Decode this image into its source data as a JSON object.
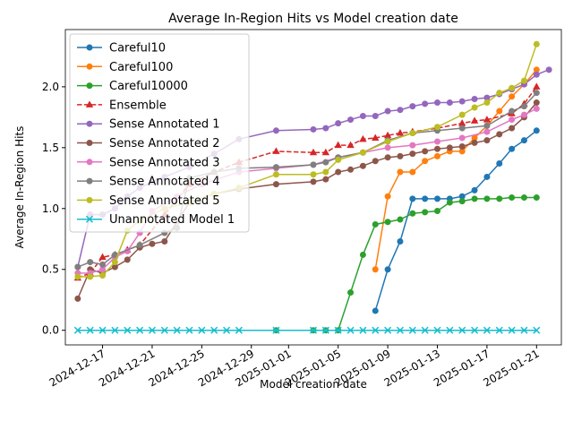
{
  "chart_data": {
    "type": "line",
    "title": "Average In-Region Hits vs Model creation date",
    "x_label": "Model creation date",
    "y_label": "Average In-Region Hits",
    "xlim": [
      "2024-12-14",
      "2025-01-23"
    ],
    "xticks": [
      "2024-12-17",
      "2024-12-21",
      "2024-12-25",
      "2024-12-29",
      "2025-01-01",
      "2025-01-05",
      "2025-01-09",
      "2025-01-13",
      "2025-01-17",
      "2025-01-21"
    ],
    "ylim": [
      -0.12,
      2.47
    ],
    "yticks": [
      {
        "value": 0,
        "label": "0.0"
      },
      0.5,
      {
        "value": 1,
        "label": "1.0"
      },
      1.5,
      {
        "value": 2,
        "label": "2.0"
      }
    ],
    "legend": "upper left",
    "series": [
      {
        "name": "Careful10",
        "color": "#1f77b4",
        "marker": "circle",
        "dash": false,
        "x": [
          "2025-01-08",
          "2025-01-09",
          "2025-01-10",
          "2025-01-11",
          "2025-01-12",
          "2025-01-13",
          "2025-01-14",
          "2025-01-15",
          "2025-01-16",
          "2025-01-17",
          "2025-01-18",
          "2025-01-19",
          "2025-01-20",
          "2025-01-21"
        ],
        "values": [
          0.16,
          0.5,
          0.73,
          1.08,
          1.08,
          1.08,
          1.08,
          1.1,
          1.15,
          1.26,
          1.37,
          1.49,
          1.56,
          1.64
        ]
      },
      {
        "name": "Careful100",
        "color": "#ff7f0e",
        "marker": "circle",
        "dash": false,
        "x": [
          "2025-01-08",
          "2025-01-09",
          "2025-01-10",
          "2025-01-11",
          "2025-01-12",
          "2025-01-13",
          "2025-01-14",
          "2025-01-15",
          "2025-01-16",
          "2025-01-17",
          "2025-01-18",
          "2025-01-19",
          "2025-01-20",
          "2025-01-21"
        ],
        "values": [
          0.5,
          1.1,
          1.3,
          1.3,
          1.39,
          1.43,
          1.47,
          1.47,
          1.58,
          1.68,
          1.8,
          1.92,
          2.02,
          2.14
        ]
      },
      {
        "name": "Careful10000",
        "color": "#2ca02c",
        "marker": "circle",
        "dash": false,
        "x": [
          "2024-12-31",
          "2025-01-03",
          "2025-01-04",
          "2025-01-05",
          "2025-01-06",
          "2025-01-07",
          "2025-01-08",
          "2025-01-09",
          "2025-01-10",
          "2025-01-11",
          "2025-01-12",
          "2025-01-13",
          "2025-01-14",
          "2025-01-15",
          "2025-01-16",
          "2025-01-17",
          "2025-01-18",
          "2025-01-19",
          "2025-01-20",
          "2025-01-21"
        ],
        "values": [
          0,
          0,
          0,
          0,
          0.31,
          0.62,
          0.87,
          0.89,
          0.91,
          0.96,
          0.97,
          0.98,
          1.05,
          1.06,
          1.08,
          1.08,
          1.08,
          1.09,
          1.09,
          1.09
        ]
      },
      {
        "name": "Ensemble",
        "color": "#d62728",
        "marker": "triangle",
        "dash": true,
        "x": [
          "2024-12-15",
          "2024-12-16",
          "2024-12-17",
          "2024-12-18",
          "2024-12-19",
          "2024-12-20",
          "2024-12-22",
          "2024-12-24",
          "2024-12-26",
          "2024-12-28",
          "2024-12-31",
          "2025-01-03",
          "2025-01-04",
          "2025-01-05",
          "2025-01-06",
          "2025-01-07",
          "2025-01-08",
          "2025-01-09",
          "2025-01-10",
          "2025-01-11",
          "2025-01-13",
          "2025-01-15",
          "2025-01-16",
          "2025-01-17",
          "2025-01-19",
          "2025-01-20",
          "2025-01-21"
        ],
        "values": [
          0.43,
          0.47,
          0.6,
          0.62,
          0.66,
          0.7,
          0.95,
          1.2,
          1.3,
          1.38,
          1.47,
          1.46,
          1.46,
          1.52,
          1.52,
          1.57,
          1.58,
          1.6,
          1.62,
          1.63,
          1.66,
          1.7,
          1.72,
          1.73,
          1.78,
          1.86,
          2.0
        ]
      },
      {
        "name": "Sense Annotated 1",
        "color": "#9467bd",
        "marker": "circle",
        "dash": false,
        "x": [
          "2024-12-15",
          "2024-12-16",
          "2024-12-17",
          "2024-12-18",
          "2024-12-19",
          "2024-12-20",
          "2024-12-21",
          "2024-12-22",
          "2024-12-24",
          "2024-12-26",
          "2024-12-28",
          "2024-12-31",
          "2025-01-03",
          "2025-01-04",
          "2025-01-05",
          "2025-01-06",
          "2025-01-07",
          "2025-01-08",
          "2025-01-09",
          "2025-01-10",
          "2025-01-11",
          "2025-01-12",
          "2025-01-13",
          "2025-01-14",
          "2025-01-15",
          "2025-01-16",
          "2025-01-17",
          "2025-01-18",
          "2025-01-19",
          "2025-01-20",
          "2025-01-21",
          "2025-01-22"
        ],
        "values": [
          0.52,
          0.95,
          0.95,
          1.0,
          1.1,
          1.17,
          1.22,
          1.26,
          1.34,
          1.45,
          1.57,
          1.64,
          1.65,
          1.66,
          1.7,
          1.73,
          1.76,
          1.76,
          1.8,
          1.81,
          1.84,
          1.86,
          1.87,
          1.87,
          1.88,
          1.9,
          1.91,
          1.94,
          1.98,
          2.02,
          2.1,
          2.14
        ]
      },
      {
        "name": "Sense Annotated 2",
        "color": "#8c564b",
        "marker": "circle",
        "dash": false,
        "x": [
          "2024-12-15",
          "2024-12-16",
          "2024-12-17",
          "2024-12-18",
          "2024-12-19",
          "2024-12-20",
          "2024-12-21",
          "2024-12-22",
          "2024-12-24",
          "2024-12-26",
          "2024-12-28",
          "2024-12-31",
          "2025-01-03",
          "2025-01-04",
          "2025-01-05",
          "2025-01-06",
          "2025-01-07",
          "2025-01-08",
          "2025-01-09",
          "2025-01-10",
          "2025-01-11",
          "2025-01-12",
          "2025-01-13",
          "2025-01-14",
          "2025-01-15",
          "2025-01-16",
          "2025-01-17",
          "2025-01-18",
          "2025-01-19",
          "2025-01-20",
          "2025-01-21"
        ],
        "values": [
          0.26,
          0.5,
          0.47,
          0.52,
          0.58,
          0.68,
          0.71,
          0.73,
          1.05,
          1.12,
          1.16,
          1.2,
          1.22,
          1.24,
          1.3,
          1.32,
          1.35,
          1.39,
          1.42,
          1.43,
          1.45,
          1.47,
          1.49,
          1.5,
          1.51,
          1.54,
          1.56,
          1.61,
          1.66,
          1.75,
          1.87
        ]
      },
      {
        "name": "Sense Annotated 3",
        "color": "#e377c2",
        "marker": "circle",
        "dash": false,
        "x": [
          "2024-12-15",
          "2024-12-16",
          "2024-12-17",
          "2024-12-18",
          "2024-12-19",
          "2024-12-20",
          "2024-12-21",
          "2024-12-23",
          "2024-12-25",
          "2024-12-28",
          "2024-12-31",
          "2025-01-03",
          "2025-01-05",
          "2025-01-07",
          "2025-01-09",
          "2025-01-11",
          "2025-01-13",
          "2025-01-15",
          "2025-01-17",
          "2025-01-19",
          "2025-01-20",
          "2025-01-21"
        ],
        "values": [
          0.47,
          0.47,
          0.5,
          0.6,
          0.65,
          0.8,
          0.98,
          1.1,
          1.2,
          1.3,
          1.33,
          1.36,
          1.42,
          1.46,
          1.5,
          1.52,
          1.55,
          1.58,
          1.63,
          1.73,
          1.77,
          1.82
        ]
      },
      {
        "name": "Sense Annotated 4",
        "color": "#7f7f7f",
        "marker": "circle",
        "dash": false,
        "x": [
          "2024-12-15",
          "2024-12-16",
          "2024-12-17",
          "2024-12-18",
          "2024-12-20",
          "2024-12-22",
          "2024-12-23",
          "2024-12-24",
          "2024-12-26",
          "2024-12-28",
          "2024-12-31",
          "2025-01-03",
          "2025-01-04",
          "2025-01-05",
          "2025-01-07",
          "2025-01-09",
          "2025-01-11",
          "2025-01-13",
          "2025-01-15",
          "2025-01-17",
          "2025-01-19",
          "2025-01-20",
          "2025-01-21"
        ],
        "values": [
          0.52,
          0.56,
          0.54,
          0.62,
          0.7,
          0.8,
          0.84,
          1.25,
          1.3,
          1.33,
          1.34,
          1.36,
          1.38,
          1.42,
          1.46,
          1.56,
          1.62,
          1.64,
          1.66,
          1.68,
          1.8,
          1.84,
          1.95
        ]
      },
      {
        "name": "Sense Annotated 5",
        "color": "#bcbd22",
        "marker": "circle",
        "dash": false,
        "x": [
          "2024-12-15",
          "2024-12-16",
          "2024-12-17",
          "2024-12-18",
          "2024-12-19",
          "2024-12-20",
          "2024-12-22",
          "2024-12-24",
          "2024-12-26",
          "2024-12-28",
          "2024-12-31",
          "2025-01-03",
          "2025-01-04",
          "2025-01-05",
          "2025-01-07",
          "2025-01-09",
          "2025-01-11",
          "2025-01-13",
          "2025-01-15",
          "2025-01-16",
          "2025-01-17",
          "2025-01-18",
          "2025-01-19",
          "2025-01-20",
          "2025-01-21"
        ],
        "values": [
          0.44,
          0.44,
          0.45,
          0.56,
          0.82,
          0.9,
          1.0,
          1.05,
          1.12,
          1.17,
          1.28,
          1.28,
          1.3,
          1.4,
          1.46,
          1.55,
          1.62,
          1.67,
          1.77,
          1.83,
          1.87,
          1.95,
          1.99,
          2.05,
          2.35
        ]
      },
      {
        "name": "Unannotated Model 1",
        "color": "#17becf",
        "marker": "x",
        "dash": false,
        "x": [
          "2024-12-15",
          "2024-12-16",
          "2024-12-17",
          "2024-12-18",
          "2024-12-19",
          "2024-12-20",
          "2024-12-21",
          "2024-12-22",
          "2024-12-23",
          "2024-12-24",
          "2024-12-25",
          "2024-12-26",
          "2024-12-27",
          "2024-12-28",
          "2024-12-31",
          "2025-01-03",
          "2025-01-04",
          "2025-01-05",
          "2025-01-06",
          "2025-01-07",
          "2025-01-08",
          "2025-01-09",
          "2025-01-10",
          "2025-01-11",
          "2025-01-12",
          "2025-01-13",
          "2025-01-14",
          "2025-01-15",
          "2025-01-16",
          "2025-01-17",
          "2025-01-18",
          "2025-01-19",
          "2025-01-20",
          "2025-01-21"
        ],
        "values": [
          0,
          0,
          0,
          0,
          0,
          0,
          0,
          0,
          0,
          0,
          0,
          0,
          0,
          0,
          0,
          0,
          0,
          0,
          0,
          0,
          0,
          0,
          0,
          0,
          0,
          0,
          0,
          0,
          0,
          0,
          0,
          0,
          0,
          0
        ]
      }
    ]
  }
}
